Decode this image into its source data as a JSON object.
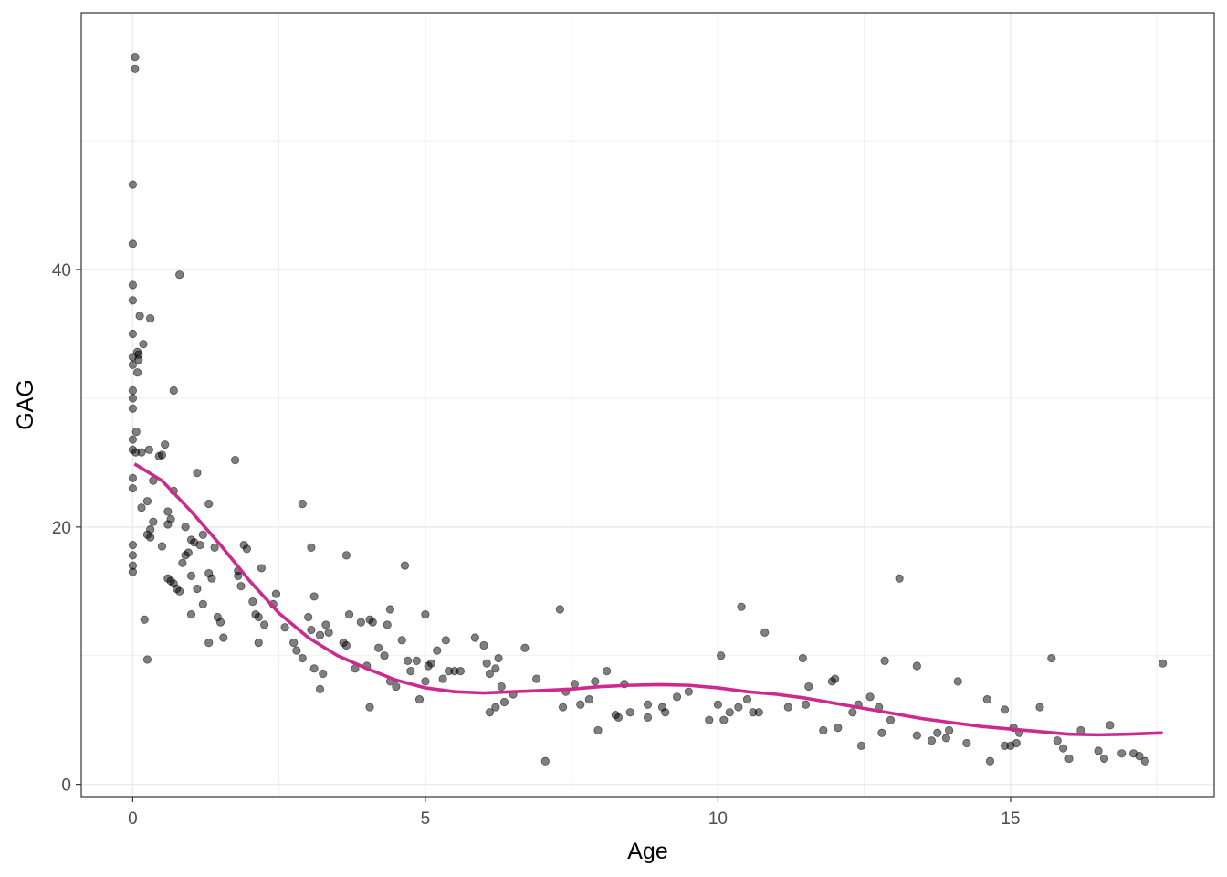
{
  "chart_data": {
    "type": "scatter",
    "title": "",
    "xlabel": "Age",
    "ylabel": "GAG",
    "xlim": [
      -0.88,
      18.48
    ],
    "ylim": [
      -0.95,
      59.95
    ],
    "x_ticks": [
      0,
      5,
      10,
      15
    ],
    "x_tick_labels": [
      "0",
      "5",
      "10",
      "15"
    ],
    "y_ticks": [
      0,
      20,
      40
    ],
    "y_tick_labels": [
      "0",
      "20",
      "40"
    ],
    "grid": true,
    "legend": "none",
    "colors": {
      "points": "#000000",
      "smooth": "#cc2a8f",
      "grid": "#ebebeb",
      "panel_border": "#333333"
    },
    "series": [
      {
        "kind": "points",
        "points": [
          [
            0.0,
            23.0
          ],
          [
            0.0,
            23.8
          ],
          [
            0.0,
            18.6
          ],
          [
            0.0,
            17.8
          ],
          [
            0.0,
            17.0
          ],
          [
            0.0,
            16.5
          ],
          [
            0.0,
            26.0
          ],
          [
            0.0,
            26.8
          ],
          [
            0.0,
            29.2
          ],
          [
            0.0,
            30.0
          ],
          [
            0.0,
            30.6
          ],
          [
            0.0,
            32.6
          ],
          [
            0.0,
            33.2
          ],
          [
            0.0,
            35.0
          ],
          [
            0.0,
            37.6
          ],
          [
            0.0,
            38.8
          ],
          [
            0.0,
            42.0
          ],
          [
            0.0,
            46.6
          ],
          [
            0.04,
            55.6
          ],
          [
            0.04,
            56.5
          ],
          [
            0.05,
            25.8
          ],
          [
            0.06,
            27.4
          ],
          [
            0.08,
            32.0
          ],
          [
            0.08,
            33.6
          ],
          [
            0.1,
            33.0
          ],
          [
            0.1,
            33.4
          ],
          [
            0.12,
            36.4
          ],
          [
            0.15,
            25.8
          ],
          [
            0.18,
            34.2
          ],
          [
            0.15,
            21.5
          ],
          [
            0.2,
            12.8
          ],
          [
            0.25,
            19.4
          ],
          [
            0.28,
            26.0
          ],
          [
            0.25,
            22.0
          ],
          [
            0.3,
            19.8
          ],
          [
            0.3,
            19.2
          ],
          [
            0.35,
            20.4
          ],
          [
            0.3,
            36.2
          ],
          [
            0.35,
            23.6
          ],
          [
            0.25,
            9.7
          ],
          [
            0.5,
            18.5
          ],
          [
            0.45,
            25.5
          ],
          [
            0.55,
            26.4
          ],
          [
            0.5,
            25.6
          ],
          [
            0.6,
            20.2
          ],
          [
            0.6,
            21.2
          ],
          [
            0.65,
            20.6
          ],
          [
            0.7,
            22.8
          ],
          [
            0.6,
            16.0
          ],
          [
            0.65,
            15.8
          ],
          [
            0.7,
            15.6
          ],
          [
            0.75,
            15.2
          ],
          [
            0.8,
            15.0
          ],
          [
            0.85,
            17.2
          ],
          [
            0.9,
            17.8
          ],
          [
            0.95,
            18.0
          ],
          [
            0.9,
            20.0
          ],
          [
            1.0,
            19.0
          ],
          [
            1.05,
            18.8
          ],
          [
            1.0,
            16.2
          ],
          [
            1.1,
            15.2
          ],
          [
            1.15,
            18.6
          ],
          [
            1.2,
            19.4
          ],
          [
            1.1,
            24.2
          ],
          [
            1.3,
            21.8
          ],
          [
            1.3,
            16.4
          ],
          [
            1.35,
            16.0
          ],
          [
            1.2,
            14.0
          ],
          [
            1.0,
            13.2
          ],
          [
            1.4,
            18.4
          ],
          [
            1.45,
            13.0
          ],
          [
            1.5,
            12.6
          ],
          [
            1.55,
            11.4
          ],
          [
            1.3,
            11.0
          ],
          [
            0.8,
            39.6
          ],
          [
            0.7,
            30.6
          ],
          [
            1.75,
            25.2
          ],
          [
            1.8,
            16.2
          ],
          [
            1.8,
            16.6
          ],
          [
            1.85,
            15.4
          ],
          [
            1.9,
            18.6
          ],
          [
            1.95,
            18.3
          ],
          [
            2.05,
            14.2
          ],
          [
            2.1,
            13.2
          ],
          [
            2.15,
            13.0
          ],
          [
            2.25,
            12.4
          ],
          [
            2.2,
            16.8
          ],
          [
            2.15,
            11.0
          ],
          [
            2.4,
            14.0
          ],
          [
            2.45,
            14.8
          ],
          [
            2.6,
            12.2
          ],
          [
            2.75,
            11.0
          ],
          [
            2.8,
            10.4
          ],
          [
            2.9,
            9.8
          ],
          [
            2.9,
            21.8
          ],
          [
            3.0,
            13.0
          ],
          [
            3.05,
            12.0
          ],
          [
            3.2,
            11.6
          ],
          [
            3.35,
            11.8
          ],
          [
            3.3,
            12.4
          ],
          [
            3.1,
            9.0
          ],
          [
            3.25,
            8.6
          ],
          [
            3.2,
            7.4
          ],
          [
            3.05,
            18.4
          ],
          [
            3.1,
            14.6
          ],
          [
            3.6,
            11.0
          ],
          [
            3.65,
            10.8
          ],
          [
            3.7,
            13.2
          ],
          [
            3.8,
            9.0
          ],
          [
            3.9,
            12.6
          ],
          [
            4.0,
            9.2
          ],
          [
            4.1,
            12.6
          ],
          [
            4.05,
            12.8
          ],
          [
            4.2,
            10.6
          ],
          [
            4.3,
            10.0
          ],
          [
            4.35,
            12.4
          ],
          [
            4.4,
            13.6
          ],
          [
            4.4,
            8.0
          ],
          [
            4.5,
            7.6
          ],
          [
            4.6,
            11.2
          ],
          [
            4.7,
            9.6
          ],
          [
            4.65,
            17.0
          ],
          [
            4.75,
            8.8
          ],
          [
            4.85,
            9.6
          ],
          [
            4.9,
            6.6
          ],
          [
            5.0,
            8.0
          ],
          [
            5.0,
            13.2
          ],
          [
            5.05,
            9.2
          ],
          [
            5.1,
            9.4
          ],
          [
            5.2,
            10.4
          ],
          [
            5.3,
            8.2
          ],
          [
            5.35,
            11.2
          ],
          [
            5.4,
            8.8
          ],
          [
            5.5,
            8.8
          ],
          [
            4.05,
            6.0
          ],
          [
            3.65,
            17.8
          ],
          [
            5.6,
            8.8
          ],
          [
            5.85,
            11.4
          ],
          [
            6.0,
            10.8
          ],
          [
            6.05,
            9.4
          ],
          [
            6.1,
            8.6
          ],
          [
            6.2,
            9.0
          ],
          [
            6.25,
            9.8
          ],
          [
            6.3,
            7.6
          ],
          [
            6.35,
            6.4
          ],
          [
            6.2,
            6.0
          ],
          [
            6.1,
            5.6
          ],
          [
            6.5,
            7.0
          ],
          [
            6.7,
            10.6
          ],
          [
            6.9,
            8.2
          ],
          [
            7.05,
            1.8
          ],
          [
            7.3,
            13.6
          ],
          [
            7.35,
            6.0
          ],
          [
            7.4,
            7.2
          ],
          [
            7.55,
            7.8
          ],
          [
            7.65,
            6.2
          ],
          [
            7.8,
            6.6
          ],
          [
            7.9,
            8.0
          ],
          [
            7.95,
            4.2
          ],
          [
            8.1,
            8.8
          ],
          [
            8.25,
            5.4
          ],
          [
            8.3,
            5.2
          ],
          [
            8.4,
            7.8
          ],
          [
            8.5,
            5.6
          ],
          [
            8.8,
            6.2
          ],
          [
            8.8,
            5.2
          ],
          [
            9.05,
            6.0
          ],
          [
            9.1,
            5.6
          ],
          [
            9.3,
            6.8
          ],
          [
            9.5,
            7.2
          ],
          [
            9.85,
            5.0
          ],
          [
            10.0,
            6.2
          ],
          [
            10.05,
            10.0
          ],
          [
            10.1,
            5.0
          ],
          [
            10.2,
            5.6
          ],
          [
            10.35,
            6.0
          ],
          [
            10.4,
            13.8
          ],
          [
            10.5,
            6.6
          ],
          [
            10.6,
            5.6
          ],
          [
            10.7,
            5.6
          ],
          [
            10.8,
            11.8
          ],
          [
            11.2,
            6.0
          ],
          [
            11.45,
            9.8
          ],
          [
            11.5,
            6.2
          ],
          [
            11.55,
            7.6
          ],
          [
            11.8,
            4.2
          ],
          [
            11.95,
            8.0
          ],
          [
            12.0,
            8.2
          ],
          [
            12.05,
            4.4
          ],
          [
            12.3,
            5.6
          ],
          [
            12.4,
            6.2
          ],
          [
            12.45,
            3.0
          ],
          [
            12.6,
            6.8
          ],
          [
            12.75,
            6.0
          ],
          [
            12.8,
            4.0
          ],
          [
            12.85,
            9.6
          ],
          [
            12.95,
            5.0
          ],
          [
            13.1,
            16.0
          ],
          [
            13.4,
            9.2
          ],
          [
            13.4,
            3.8
          ],
          [
            13.65,
            3.4
          ],
          [
            13.75,
            4.0
          ],
          [
            13.9,
            3.6
          ],
          [
            13.95,
            4.2
          ],
          [
            14.1,
            8.0
          ],
          [
            14.25,
            3.2
          ],
          [
            14.6,
            6.6
          ],
          [
            14.65,
            1.8
          ],
          [
            14.9,
            5.8
          ],
          [
            14.9,
            3.0
          ],
          [
            15.0,
            3.0
          ],
          [
            15.05,
            4.4
          ],
          [
            15.1,
            3.2
          ],
          [
            15.15,
            4.0
          ],
          [
            15.5,
            6.0
          ],
          [
            15.7,
            9.8
          ],
          [
            15.8,
            3.4
          ],
          [
            15.9,
            2.8
          ],
          [
            16.0,
            2.0
          ],
          [
            16.2,
            4.2
          ],
          [
            16.5,
            2.6
          ],
          [
            16.6,
            2.0
          ],
          [
            16.7,
            4.6
          ],
          [
            16.9,
            2.4
          ],
          [
            17.1,
            2.4
          ],
          [
            17.2,
            2.2
          ],
          [
            17.3,
            1.8
          ],
          [
            17.6,
            9.4
          ]
        ]
      },
      {
        "kind": "smooth",
        "points": [
          [
            0.03,
            24.9
          ],
          [
            0.5,
            23.6
          ],
          [
            1.0,
            21.2
          ],
          [
            1.5,
            18.6
          ],
          [
            2.0,
            15.8
          ],
          [
            2.5,
            13.3
          ],
          [
            3.0,
            11.4
          ],
          [
            3.5,
            10.0
          ],
          [
            4.0,
            9.0
          ],
          [
            4.5,
            8.1
          ],
          [
            5.0,
            7.5
          ],
          [
            5.5,
            7.2
          ],
          [
            6.0,
            7.1
          ],
          [
            6.5,
            7.2
          ],
          [
            7.0,
            7.3
          ],
          [
            7.5,
            7.4
          ],
          [
            8.0,
            7.6
          ],
          [
            8.5,
            7.7
          ],
          [
            9.0,
            7.75
          ],
          [
            9.5,
            7.7
          ],
          [
            10.0,
            7.5
          ],
          [
            10.5,
            7.2
          ],
          [
            11.0,
            7.0
          ],
          [
            11.5,
            6.7
          ],
          [
            12.0,
            6.3
          ],
          [
            12.5,
            5.9
          ],
          [
            13.0,
            5.5
          ],
          [
            13.5,
            5.1
          ],
          [
            14.0,
            4.8
          ],
          [
            14.5,
            4.5
          ],
          [
            15.0,
            4.3
          ],
          [
            15.5,
            4.1
          ],
          [
            16.0,
            3.9
          ],
          [
            16.5,
            3.85
          ],
          [
            17.0,
            3.9
          ],
          [
            17.6,
            4.0
          ]
        ]
      }
    ]
  }
}
